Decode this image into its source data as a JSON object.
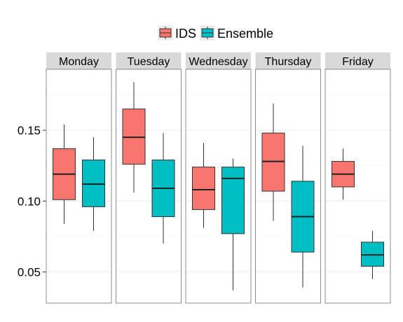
{
  "chart_data": {
    "type": "boxplot",
    "legend": {
      "placement": "top-center",
      "entries": [
        {
          "name": "IDS",
          "color": "#F8766D"
        },
        {
          "name": "Ensemble",
          "color": "#00BFC4"
        }
      ]
    },
    "facets": [
      "Monday",
      "Tuesday",
      "Wednesday",
      "Thursday",
      "Friday"
    ],
    "y": {
      "min": 0.028,
      "max": 0.193,
      "ticks": [
        0.05,
        0.1,
        0.15
      ],
      "tick_labels": [
        "0.05",
        "0.10",
        "0.15"
      ]
    },
    "grid": true,
    "series": [
      {
        "name": "IDS",
        "color": "#F8766D",
        "boxes": [
          {
            "facet": "Monday",
            "whisker_low": 0.084,
            "q1": 0.101,
            "median": 0.119,
            "q3": 0.137,
            "whisker_high": 0.154
          },
          {
            "facet": "Tuesday",
            "whisker_low": 0.106,
            "q1": 0.126,
            "median": 0.145,
            "q3": 0.165,
            "whisker_high": 0.184
          },
          {
            "facet": "Wednesday",
            "whisker_low": 0.081,
            "q1": 0.094,
            "median": 0.108,
            "q3": 0.124,
            "whisker_high": 0.141
          },
          {
            "facet": "Thursday",
            "whisker_low": 0.086,
            "q1": 0.107,
            "median": 0.128,
            "q3": 0.148,
            "whisker_high": 0.169
          },
          {
            "facet": "Friday",
            "whisker_low": 0.101,
            "q1": 0.11,
            "median": 0.119,
            "q3": 0.128,
            "whisker_high": 0.137
          }
        ]
      },
      {
        "name": "Ensemble",
        "color": "#00BFC4",
        "boxes": [
          {
            "facet": "Monday",
            "whisker_low": 0.079,
            "q1": 0.096,
            "median": 0.112,
            "q3": 0.129,
            "whisker_high": 0.145
          },
          {
            "facet": "Tuesday",
            "whisker_low": 0.07,
            "q1": 0.089,
            "median": 0.109,
            "q3": 0.129,
            "whisker_high": 0.148
          },
          {
            "facet": "Wednesday",
            "whisker_low": 0.037,
            "q1": 0.077,
            "median": 0.116,
            "q3": 0.124,
            "whisker_high": 0.13
          },
          {
            "facet": "Thursday",
            "whisker_low": 0.039,
            "q1": 0.064,
            "median": 0.089,
            "q3": 0.114,
            "whisker_high": 0.139
          },
          {
            "facet": "Friday",
            "whisker_low": 0.045,
            "q1": 0.054,
            "median": 0.062,
            "q3": 0.071,
            "whisker_high": 0.079
          }
        ]
      }
    ]
  }
}
